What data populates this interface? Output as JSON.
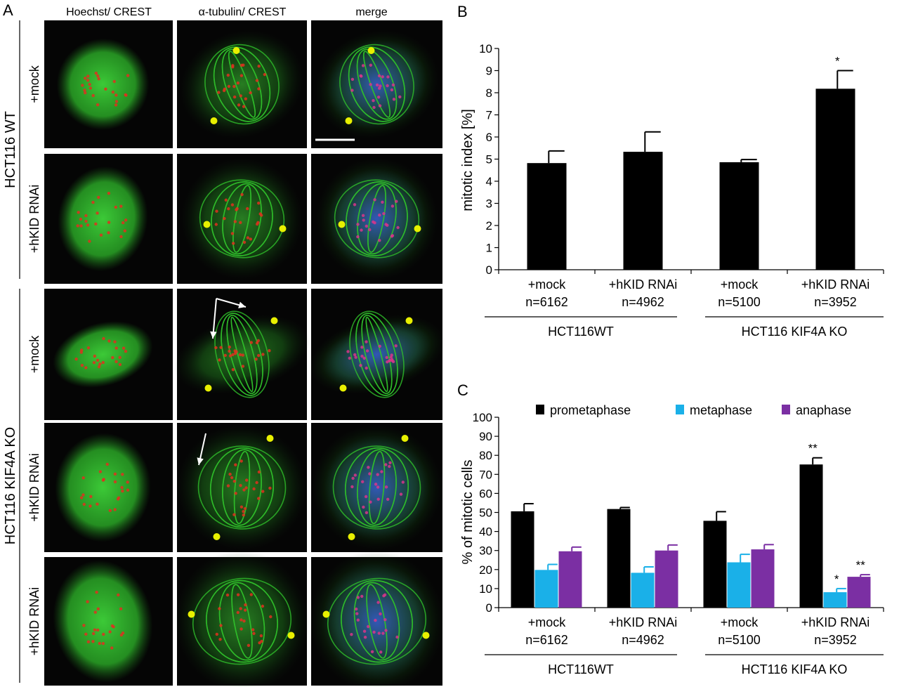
{
  "panel_a": {
    "letter": "A",
    "columns": [
      "Hoechst/ CREST",
      "α-tubulin/ CREST",
      "merge"
    ],
    "groups": [
      {
        "label": "HCT116 WT",
        "rows": [
          "+mock",
          "+hKID RNAi"
        ]
      },
      {
        "label": "HCT116 KIF4A KO",
        "rows": [
          "+mock",
          "+hKID RNAi",
          "+hKID RNAi"
        ]
      }
    ],
    "colors": {
      "dna": "#2a3fb0",
      "tubulin": "#2fbf2a",
      "crest": "#e0301e",
      "pole": "#e8f000",
      "background": "#050505"
    }
  },
  "panel_b": {
    "letter": "B",
    "chart_data": {
      "type": "bar",
      "ylabel": "mitotic index [%]",
      "ylim": [
        0,
        10
      ],
      "yticks": [
        0,
        1,
        2,
        3,
        4,
        5,
        6,
        7,
        8,
        9,
        10
      ],
      "categories": [
        "+mock",
        "+hKID RNAi",
        "+mock",
        "+hKID RNAi"
      ],
      "n_labels": [
        "n=6162",
        "n=4962",
        "n=5100",
        "n=3952"
      ],
      "groups": [
        {
          "label": "HCT116WT",
          "span": [
            0,
            1
          ]
        },
        {
          "label": "HCT116 KIF4A KO",
          "span": [
            2,
            3
          ]
        }
      ],
      "values": [
        4.82,
        5.33,
        4.86,
        8.18
      ],
      "errors": [
        0.55,
        0.9,
        0.12,
        0.82
      ],
      "annotations": [
        "",
        "",
        "",
        "*"
      ],
      "color": "#000000",
      "grid": false
    }
  },
  "panel_c": {
    "letter": "C",
    "chart_data": {
      "type": "bar",
      "ylabel": "% of mitotic cells",
      "ylim": [
        0,
        100
      ],
      "yticks": [
        0,
        10,
        20,
        30,
        40,
        50,
        60,
        70,
        80,
        90,
        100
      ],
      "categories": [
        "+mock",
        "+hKID RNAi",
        "+mock",
        "+hKID RNAi"
      ],
      "n_labels": [
        "n=6162",
        "n=4962",
        "n=5100",
        "n=3952"
      ],
      "groups": [
        {
          "label": "HCT116WT",
          "span": [
            0,
            1
          ]
        },
        {
          "label": "HCT116 KIF4A KO",
          "span": [
            2,
            3
          ]
        }
      ],
      "legend_position": "top",
      "series": [
        {
          "name": "prometaphase",
          "color": "#000000",
          "values": [
            50.6,
            51.8,
            45.6,
            75.2
          ],
          "errors": [
            4.0,
            0.8,
            4.8,
            3.5
          ],
          "annotations": [
            "",
            "",
            "",
            "**"
          ]
        },
        {
          "name": "metaphase",
          "color": "#1ab0e8",
          "values": [
            19.8,
            18.3,
            23.8,
            8.1
          ],
          "errors": [
            2.9,
            3.1,
            4.2,
            1.9
          ],
          "annotations": [
            "",
            "",
            "",
            "*"
          ]
        },
        {
          "name": "anaphase",
          "color": "#7b2fa3",
          "values": [
            29.6,
            30.0,
            30.6,
            16.2
          ],
          "errors": [
            2.2,
            2.9,
            2.5,
            1.1
          ],
          "annotations": [
            "",
            "",
            "",
            "**"
          ]
        }
      ],
      "grid": false
    }
  }
}
